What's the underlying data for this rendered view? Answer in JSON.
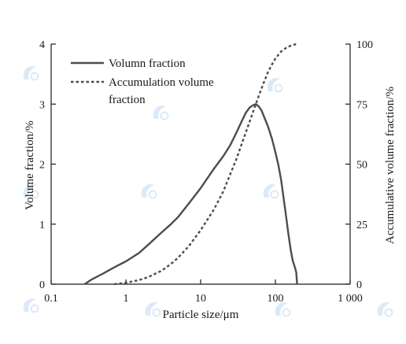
{
  "chart_data": {
    "type": "line",
    "xscale": "log",
    "xlim": [
      0.1,
      1000
    ],
    "xticks": [
      0.1,
      1,
      10,
      100,
      1000
    ],
    "xtick_labels": [
      "0.1",
      "1",
      "10",
      "100",
      "1 000"
    ],
    "xlabel": "Particle size/μm",
    "ylabel_left": "Volume fraction/%",
    "ylim_left": [
      0,
      4
    ],
    "yticks_left": [
      "0",
      "1",
      "2",
      "3",
      "4"
    ],
    "ylabel_right": "Accumulative volume fraction/%",
    "ylim_right": [
      0,
      100
    ],
    "yticks_right": [
      "0",
      "25",
      "50",
      "75",
      "100"
    ],
    "grid": false,
    "legend_position": "top-left",
    "series": [
      {
        "name": "Volumn fraction",
        "axis": "left",
        "style": "solid",
        "color": "#4d4d4d",
        "x": [
          0.28,
          0.35,
          0.5,
          0.7,
          1,
          1.5,
          2,
          3,
          4,
          5,
          7,
          10,
          15,
          20,
          25,
          30,
          35,
          40,
          45,
          50,
          55,
          60,
          65,
          70,
          80,
          90,
          100,
          110,
          120,
          130,
          140,
          150,
          160,
          170,
          180,
          190,
          195
        ],
        "y": [
          0.0,
          0.08,
          0.18,
          0.28,
          0.38,
          0.52,
          0.66,
          0.86,
          1.0,
          1.12,
          1.35,
          1.6,
          1.92,
          2.13,
          2.32,
          2.52,
          2.7,
          2.85,
          2.94,
          2.98,
          3.0,
          2.96,
          2.9,
          2.8,
          2.62,
          2.42,
          2.2,
          1.98,
          1.72,
          1.4,
          1.1,
          0.82,
          0.58,
          0.4,
          0.3,
          0.2,
          0.0
        ]
      },
      {
        "name": "Accumulation volume fraction",
        "axis": "right",
        "style": "dashed",
        "color": "#4d4d4d",
        "x": [
          0.7,
          1,
          1.5,
          2,
          3,
          4,
          5,
          7,
          10,
          15,
          20,
          30,
          40,
          50,
          60,
          70,
          80,
          90,
          100,
          120,
          140,
          160,
          180,
          195
        ],
        "y": [
          0,
          0.6,
          1.7,
          3,
          5.6,
          8.4,
          11,
          16,
          22.5,
          31,
          38.5,
          52,
          63,
          71.5,
          78.5,
          84,
          88.5,
          91.5,
          94,
          97,
          98.5,
          99.3,
          99.8,
          100
        ]
      }
    ]
  },
  "legend": [
    {
      "label": "Volumn fraction",
      "style": "solid"
    },
    {
      "label": "Accumulation volume",
      "label2": "fraction",
      "style": "dashed"
    }
  ],
  "colors": {
    "axis": "#1a1a1a",
    "series": "#4d4d4d",
    "watermark": "#9ec3e6"
  }
}
